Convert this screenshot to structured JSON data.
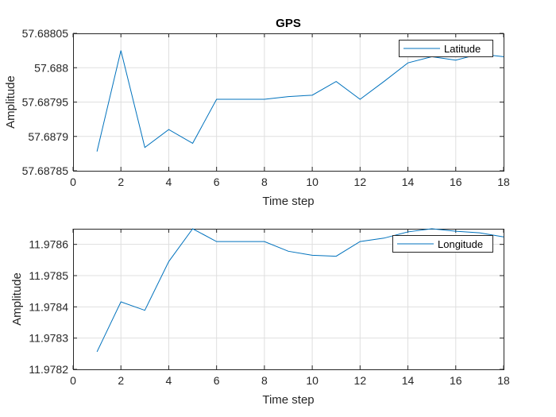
{
  "chart_data": [
    {
      "type": "line",
      "title": "GPS",
      "xlabel": "Time step",
      "ylabel": "Amplitude",
      "xlim": [
        0,
        18
      ],
      "ylim": [
        57.68785,
        57.68805
      ],
      "xticks": [
        0,
        2,
        4,
        6,
        8,
        10,
        12,
        14,
        16,
        18
      ],
      "xtick_labels": [
        "0",
        "2",
        "4",
        "6",
        "8",
        "10",
        "12",
        "14",
        "16",
        "18"
      ],
      "yticks": [
        57.68785,
        57.6879,
        57.68795,
        57.688,
        57.68805
      ],
      "ytick_labels": [
        "57.68785",
        "57.6879",
        "57.68795",
        "57.688",
        "57.68805"
      ],
      "grid": true,
      "legend_position": "top-right",
      "line_color": "#0072BD",
      "series": [
        {
          "name": "Latitude",
          "x": [
            1,
            2,
            3,
            4,
            5,
            6,
            7,
            8,
            9,
            10,
            11,
            12,
            13,
            14,
            15,
            16,
            17,
            18
          ],
          "y": [
            57.687878,
            57.688025,
            57.687884,
            57.68791,
            57.68789,
            57.687954,
            57.687954,
            57.687954,
            57.687958,
            57.68796,
            57.68798,
            57.687954,
            57.68798,
            57.688007,
            57.688016,
            57.688011,
            57.68802,
            57.688016
          ]
        }
      ]
    },
    {
      "type": "line",
      "title": "",
      "xlabel": "Time step",
      "ylabel": "Amplitude",
      "xlim": [
        0,
        18
      ],
      "ylim": [
        11.9782,
        11.97865
      ],
      "xticks": [
        0,
        2,
        4,
        6,
        8,
        10,
        12,
        14,
        16,
        18
      ],
      "xtick_labels": [
        "0",
        "2",
        "4",
        "6",
        "8",
        "10",
        "12",
        "14",
        "16",
        "18"
      ],
      "yticks": [
        11.9782,
        11.9783,
        11.9784,
        11.9785,
        11.9786
      ],
      "ytick_labels": [
        "11.9782",
        "11.9783",
        "11.9784",
        "11.9785",
        "11.9786"
      ],
      "grid": true,
      "legend_position": "top-right",
      "line_color": "#0072BD",
      "series": [
        {
          "name": "Longitude",
          "x": [
            1,
            2,
            3,
            4,
            5,
            6,
            7,
            8,
            9,
            10,
            11,
            12,
            13,
            14,
            15,
            16,
            17,
            18
          ],
          "y": [
            11.978256,
            11.978416,
            11.978389,
            11.978545,
            11.97865,
            11.978609,
            11.978609,
            11.978609,
            11.978578,
            11.978565,
            11.978562,
            11.978609,
            11.97862,
            11.97864,
            11.97865,
            11.978642,
            11.978637,
            11.978624
          ]
        }
      ]
    }
  ]
}
